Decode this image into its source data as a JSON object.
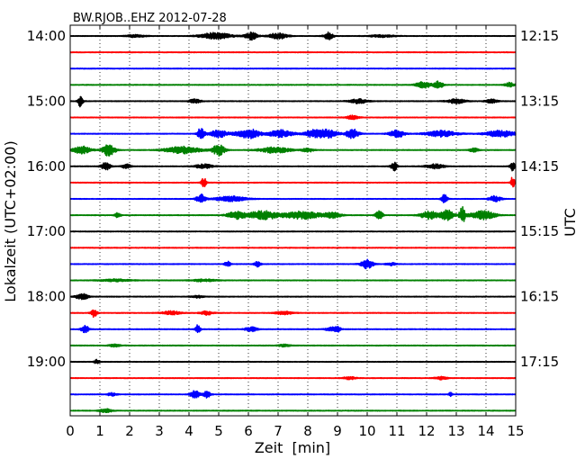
{
  "chart_data": {
    "type": "line",
    "title": "BW.RJOB..EHZ 2012-07-28",
    "xlabel": "Zeit  [min]",
    "ylabel": "Lokalzeit (UTC+02:00)",
    "ylabel_right": "UTC",
    "xlim": [
      0,
      15
    ],
    "x_ticks": [
      "0",
      "1",
      "2",
      "3",
      "4",
      "5",
      "6",
      "7",
      "8",
      "9",
      "10",
      "11",
      "12",
      "13",
      "14",
      "15"
    ],
    "left_tick_labels": [
      "14:00",
      "15:00",
      "16:00",
      "17:00",
      "18:00",
      "19:00"
    ],
    "right_tick_labels": [
      "12:15",
      "13:15",
      "14:15",
      "15:15",
      "16:15",
      "17:15"
    ],
    "trace_interval_min": 15,
    "traces_per_hour": 4,
    "grid": "x-dotted",
    "colors": [
      "#000000",
      "#ff0000",
      "#0000ff",
      "#008000"
    ],
    "traces": [
      {
        "start": "14:00",
        "bursts": [
          [
            4.9,
            0.5,
            0.9
          ],
          [
            6.1,
            0.2,
            1.0
          ],
          [
            7.0,
            0.3,
            0.8
          ],
          [
            8.7,
            0.15,
            1.0
          ],
          [
            2.2,
            0.3,
            0.35
          ],
          [
            10.5,
            0.4,
            0.3
          ]
        ]
      },
      {
        "start": "14:15",
        "bursts": []
      },
      {
        "start": "14:30",
        "bursts": []
      },
      {
        "start": "14:45",
        "bursts": [
          [
            11.9,
            0.25,
            0.9
          ],
          [
            12.4,
            0.15,
            1.0
          ],
          [
            14.8,
            0.15,
            0.6
          ]
        ]
      },
      {
        "start": "15:00",
        "bursts": [
          [
            0.35,
            0.08,
            1.6
          ],
          [
            4.2,
            0.2,
            0.5
          ],
          [
            9.7,
            0.3,
            0.6
          ],
          [
            13.0,
            0.3,
            0.6
          ],
          [
            14.2,
            0.2,
            0.5
          ]
        ]
      },
      {
        "start": "15:15",
        "bursts": [
          [
            9.5,
            0.2,
            0.5
          ]
        ]
      },
      {
        "start": "15:30",
        "bursts": [
          [
            4.4,
            0.12,
            1.6
          ],
          [
            5.0,
            0.3,
            1.0
          ],
          [
            6.0,
            0.4,
            1.3
          ],
          [
            7.1,
            0.4,
            1.0
          ],
          [
            8.2,
            0.3,
            1.0
          ],
          [
            8.7,
            0.3,
            1.1
          ],
          [
            9.5,
            0.2,
            1.4
          ],
          [
            11.0,
            0.25,
            1.0
          ],
          [
            12.5,
            0.5,
            0.8
          ],
          [
            14.5,
            0.5,
            0.9
          ]
        ]
      },
      {
        "start": "15:45",
        "bursts": [
          [
            0.4,
            0.3,
            1.0
          ],
          [
            1.3,
            0.2,
            1.8
          ],
          [
            3.8,
            0.6,
            0.9
          ],
          [
            5.0,
            0.2,
            1.5
          ],
          [
            6.9,
            0.5,
            0.8
          ],
          [
            8.0,
            0.2,
            0.5
          ],
          [
            13.6,
            0.15,
            0.6
          ]
        ]
      },
      {
        "start": "16:00",
        "bursts": [
          [
            1.2,
            0.15,
            1.0
          ],
          [
            1.9,
            0.15,
            0.6
          ],
          [
            4.5,
            0.3,
            0.6
          ],
          [
            10.9,
            0.1,
            1.2
          ],
          [
            12.3,
            0.3,
            0.6
          ],
          [
            14.9,
            0.08,
            1.2
          ]
        ]
      },
      {
        "start": "16:15",
        "bursts": [
          [
            4.5,
            0.08,
            1.3
          ],
          [
            14.9,
            0.06,
            1.8
          ]
        ]
      },
      {
        "start": "16:30",
        "bursts": [
          [
            4.4,
            0.15,
            1.3
          ],
          [
            5.4,
            0.5,
            0.7
          ],
          [
            12.6,
            0.1,
            1.1
          ],
          [
            14.3,
            0.2,
            0.8
          ]
        ]
      },
      {
        "start": "16:45",
        "bursts": [
          [
            1.6,
            0.1,
            0.6
          ],
          [
            5.6,
            0.3,
            1.0
          ],
          [
            6.5,
            0.5,
            1.2
          ],
          [
            7.8,
            0.6,
            1.0
          ],
          [
            8.8,
            0.3,
            0.8
          ],
          [
            10.4,
            0.12,
            1.2
          ],
          [
            12.1,
            0.3,
            1.1
          ],
          [
            12.7,
            0.2,
            1.6
          ],
          [
            13.2,
            0.1,
            2.2
          ],
          [
            13.9,
            0.4,
            1.2
          ]
        ]
      },
      {
        "start": "17:00",
        "bursts": []
      },
      {
        "start": "17:15",
        "bursts": []
      },
      {
        "start": "17:30",
        "bursts": [
          [
            5.3,
            0.1,
            0.7
          ],
          [
            6.3,
            0.1,
            0.7
          ],
          [
            10.0,
            0.2,
            1.2
          ],
          [
            10.8,
            0.15,
            0.4
          ]
        ]
      },
      {
        "start": "17:45",
        "bursts": [
          [
            1.5,
            0.5,
            0.3
          ],
          [
            4.5,
            0.4,
            0.3
          ]
        ]
      },
      {
        "start": "18:00",
        "bursts": [
          [
            0.4,
            0.2,
            0.8
          ],
          [
            4.3,
            0.2,
            0.3
          ]
        ]
      },
      {
        "start": "18:15",
        "bursts": [
          [
            0.8,
            0.1,
            1.1
          ],
          [
            3.4,
            0.3,
            0.5
          ],
          [
            4.6,
            0.2,
            0.5
          ],
          [
            7.2,
            0.3,
            0.4
          ]
        ]
      },
      {
        "start": "18:30",
        "bursts": [
          [
            0.5,
            0.12,
            1.1
          ],
          [
            4.3,
            0.08,
            1.2
          ],
          [
            6.1,
            0.2,
            0.6
          ],
          [
            8.8,
            0.2,
            0.5
          ],
          [
            9.0,
            0.1,
            0.8
          ]
        ]
      },
      {
        "start": "18:45",
        "bursts": [
          [
            1.5,
            0.2,
            0.3
          ],
          [
            7.2,
            0.2,
            0.3
          ]
        ]
      },
      {
        "start": "19:00",
        "bursts": [
          [
            0.9,
            0.08,
            0.6
          ]
        ]
      },
      {
        "start": "19:15",
        "bursts": [
          [
            9.4,
            0.2,
            0.4
          ],
          [
            12.5,
            0.2,
            0.4
          ]
        ]
      },
      {
        "start": "19:30",
        "bursts": [
          [
            1.4,
            0.15,
            0.4
          ],
          [
            4.2,
            0.15,
            1.1
          ],
          [
            4.6,
            0.12,
            1.0
          ],
          [
            12.8,
            0.05,
            0.6
          ]
        ]
      },
      {
        "start": "19:45",
        "bursts": [
          [
            1.2,
            0.2,
            0.5
          ]
        ]
      }
    ]
  }
}
